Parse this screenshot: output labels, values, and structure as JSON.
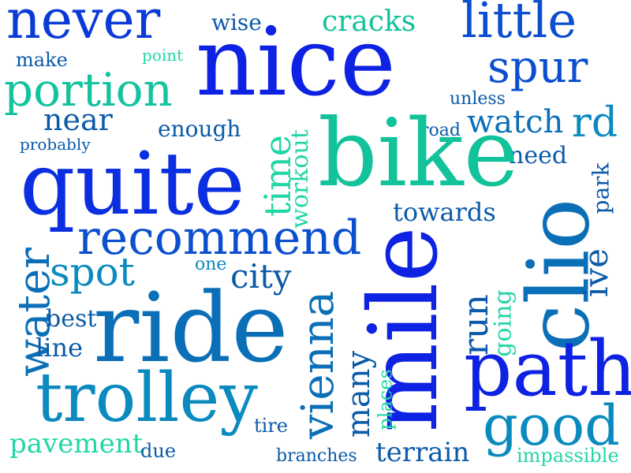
{
  "words": [
    {
      "text": "never",
      "color": "#0b3bd6"
    },
    {
      "text": "nice",
      "color": "#0e22e3"
    },
    {
      "text": "little",
      "color": "#0b4fd0"
    },
    {
      "text": "wise",
      "color": "#0b5aa8"
    },
    {
      "text": "cracks",
      "color": "#12c29a"
    },
    {
      "text": "make",
      "color": "#0b5aa8"
    },
    {
      "text": "point",
      "color": "#22d6a6"
    },
    {
      "text": "spur",
      "color": "#0b4fd0"
    },
    {
      "text": "portion",
      "color": "#14c39e"
    },
    {
      "text": "unless",
      "color": "#0b5aa8"
    },
    {
      "text": "near",
      "color": "#0b5aa8"
    },
    {
      "text": "enough",
      "color": "#0b5aa8"
    },
    {
      "text": "road",
      "color": "#0b5aa8"
    },
    {
      "text": "watch",
      "color": "#0b6fb8"
    },
    {
      "text": "rd",
      "color": "#0b8abf"
    },
    {
      "text": "probably",
      "color": "#0b5aa8"
    },
    {
      "text": "need",
      "color": "#0b5aa8"
    },
    {
      "text": "bike",
      "color": "#12c29a"
    },
    {
      "text": "quite",
      "color": "#0b2fe0"
    },
    {
      "text": "time",
      "color": "#22d6a6"
    },
    {
      "text": "workout",
      "color": "#22d6a6"
    },
    {
      "text": "park",
      "color": "#0b5aa8"
    },
    {
      "text": "towards",
      "color": "#0b5aa8"
    },
    {
      "text": "recommend",
      "color": "#0b4fd0"
    },
    {
      "text": "clio",
      "color": "#0b6fb8"
    },
    {
      "text": "water",
      "color": "#0b6fb8"
    },
    {
      "text": "spot",
      "color": "#0b8abf"
    },
    {
      "text": "one",
      "color": "#0b8abf"
    },
    {
      "text": "city",
      "color": "#0b5aa8"
    },
    {
      "text": "ive",
      "color": "#0b5aa8"
    },
    {
      "text": "mile",
      "color": "#0e22e3"
    },
    {
      "text": "vienna",
      "color": "#0b6fb8"
    },
    {
      "text": "run",
      "color": "#0b5aa8"
    },
    {
      "text": "going",
      "color": "#22d6a6"
    },
    {
      "text": "best",
      "color": "#0b5aa8"
    },
    {
      "text": "ride",
      "color": "#0b6fb8"
    },
    {
      "text": "line",
      "color": "#0b5aa8"
    },
    {
      "text": "path",
      "color": "#0e22e3"
    },
    {
      "text": "many",
      "color": "#0b5aa8"
    },
    {
      "text": "trolley",
      "color": "#0b8abf"
    },
    {
      "text": "places",
      "color": "#22d6a6"
    },
    {
      "text": "good",
      "color": "#0b8abf"
    },
    {
      "text": "tire",
      "color": "#0b5aa8"
    },
    {
      "text": "pavement",
      "color": "#22d6a6"
    },
    {
      "text": "due",
      "color": "#0b5aa8"
    },
    {
      "text": "branches",
      "color": "#0b5aa8"
    },
    {
      "text": "terrain",
      "color": "#0b5aa8"
    },
    {
      "text": "impassible",
      "color": "#22d6a6"
    }
  ]
}
